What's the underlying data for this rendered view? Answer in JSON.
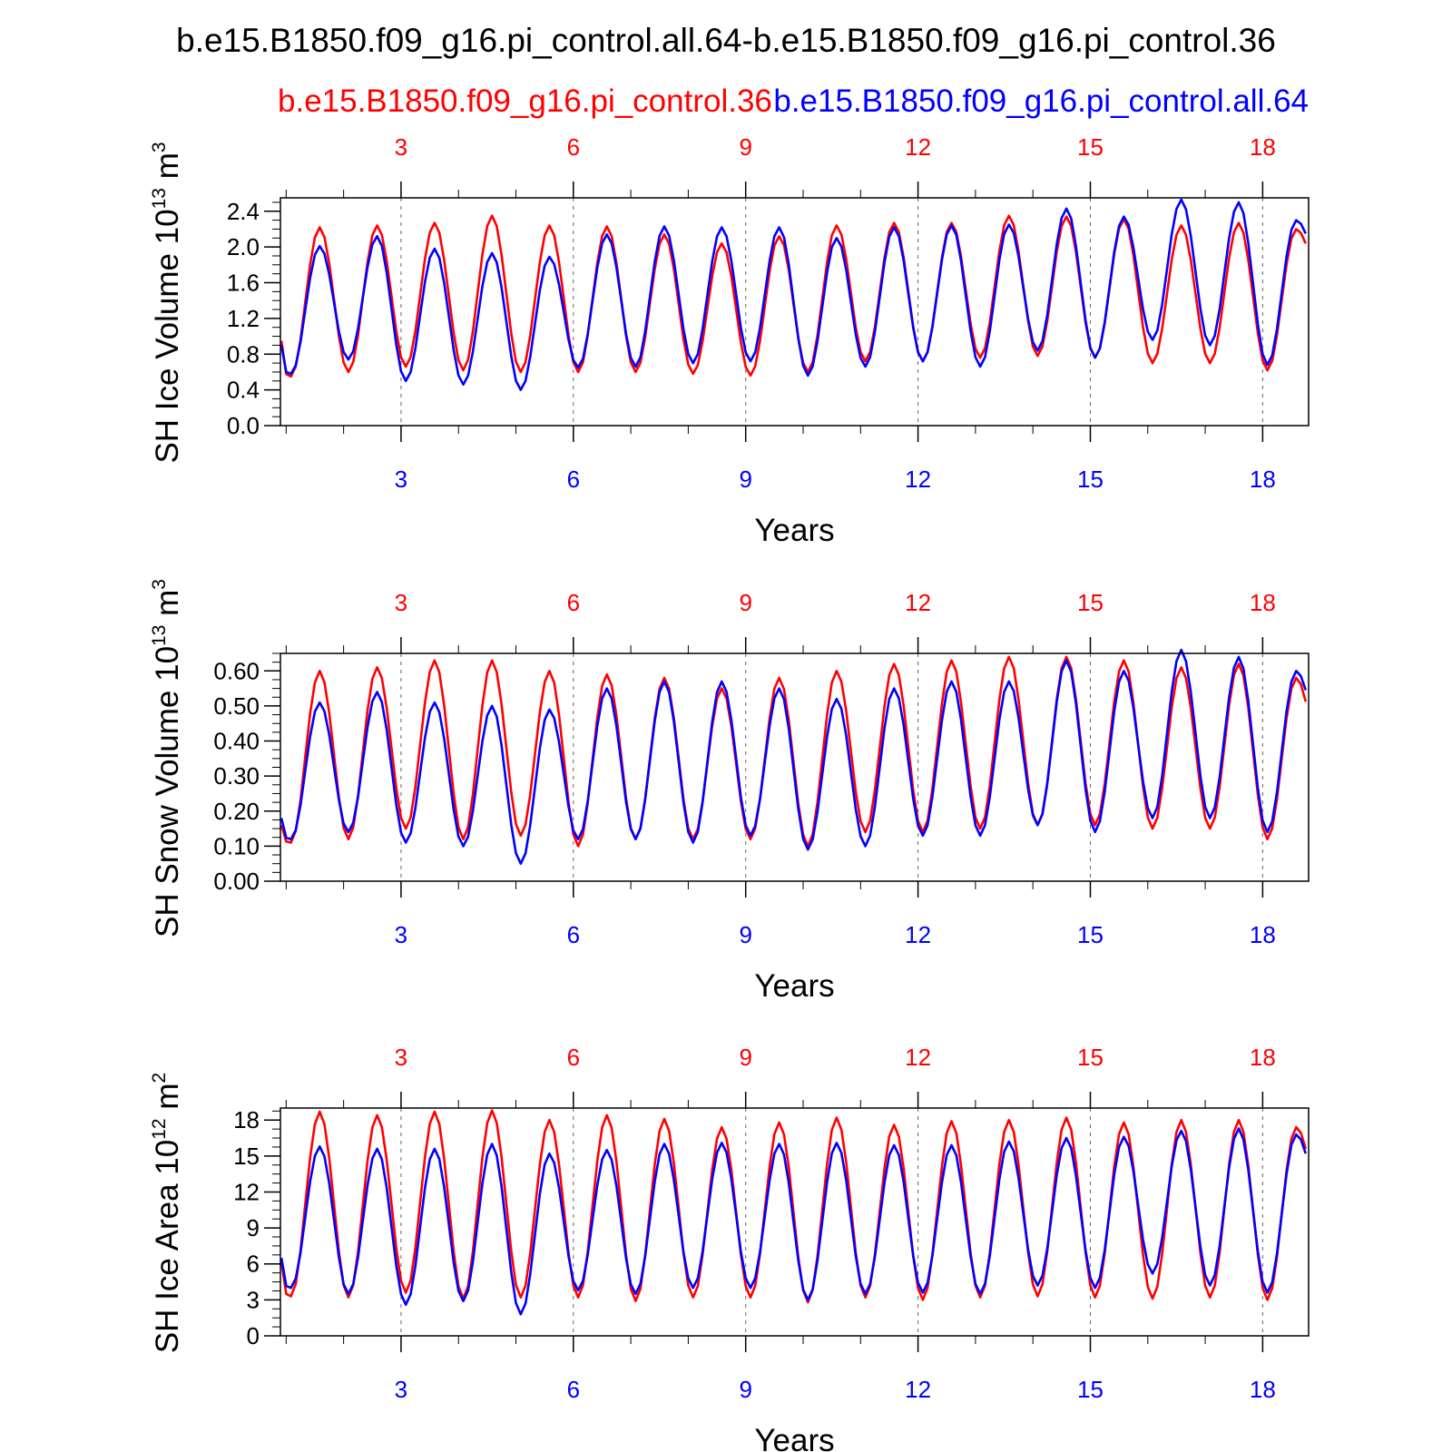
{
  "figure": {
    "main_title": "b.e15.B1850.f09_g16.pi_control.all.64-b.e15.B1850.f09_g16.pi_control.36",
    "red_run_label": "b.e15.B1850.f09_g16.pi_control.36",
    "blue_run_label": "b.e15.B1850.f09_g16.pi_control.all.64"
  },
  "colors": {
    "red": "#ff0000",
    "blue": "#0000ff",
    "axis": "#000000"
  },
  "chart_data": [
    {
      "type": "line",
      "ylabel": "SH Ice Volume 10",
      "ylabel_exp": "13",
      "ylabel_unit": " m",
      "ylabel_unit_exp": "3",
      "xlabel": "Years",
      "xlim": [
        0.9,
        18.8
      ],
      "ylim": [
        0.0,
        2.55
      ],
      "yticks": [
        0.0,
        0.4,
        0.8,
        1.2,
        1.6,
        2.0,
        2.4
      ],
      "yticklabels": [
        "0.0",
        "0.4",
        "0.8",
        "1.2",
        "1.6",
        "2.0",
        "2.4"
      ],
      "yminor": 0.1,
      "xticks": [
        3,
        6,
        9,
        12,
        15,
        18
      ],
      "xticklabels": [
        "3",
        "6",
        "9",
        "12",
        "15",
        "18"
      ],
      "series": [
        {
          "name": "b.e15.B1850.f09_g16.pi_control.36",
          "color": "red",
          "x0": 0.917,
          "dx": 0.08333,
          "period": 12,
          "peak_idx": 8,
          "trough_idx": 2,
          "start": 0.95,
          "end": 1.55,
          "peaks": [
            2.22,
            2.24,
            2.27,
            2.35,
            2.24,
            2.23,
            2.14,
            2.04,
            2.12,
            2.24,
            2.27,
            2.27,
            2.35,
            2.34,
            2.31,
            2.24,
            2.27,
            2.2
          ],
          "troughs": [
            0.55,
            0.6,
            0.66,
            0.62,
            0.6,
            0.6,
            0.6,
            0.58,
            0.56,
            0.6,
            0.72,
            0.72,
            0.76,
            0.78,
            0.76,
            0.7,
            0.7,
            0.62
          ]
        },
        {
          "name": "b.e15.B1850.f09_g16.pi_control.all.64",
          "color": "blue",
          "x0": 0.917,
          "dx": 0.08333,
          "period": 12,
          "peak_idx": 8,
          "trough_idx": 2,
          "start": 0.9,
          "end": 1.7,
          "peaks": [
            2.01,
            2.12,
            1.98,
            1.93,
            1.89,
            2.14,
            2.23,
            2.22,
            2.22,
            2.1,
            2.22,
            2.24,
            2.25,
            2.43,
            2.34,
            2.53,
            2.5,
            2.3
          ],
          "troughs": [
            0.58,
            0.74,
            0.5,
            0.46,
            0.4,
            0.65,
            0.66,
            0.7,
            0.72,
            0.56,
            0.66,
            0.72,
            0.66,
            0.84,
            0.76,
            0.96,
            0.9,
            0.68
          ]
        }
      ]
    },
    {
      "type": "line",
      "ylabel": "SH Snow Volume 10",
      "ylabel_exp": "13",
      "ylabel_unit": " m",
      "ylabel_unit_exp": "3",
      "xlabel": "Years",
      "xlim": [
        0.9,
        18.8
      ],
      "ylim": [
        0.0,
        0.65
      ],
      "yticks": [
        0.0,
        0.1,
        0.2,
        0.3,
        0.4,
        0.5,
        0.6
      ],
      "yticklabels": [
        "0.00",
        "0.10",
        "0.20",
        "0.30",
        "0.40",
        "0.50",
        "0.60"
      ],
      "yminor": 0.025,
      "xticks": [
        3,
        6,
        9,
        12,
        15,
        18
      ],
      "xticklabels": [
        "3",
        "6",
        "9",
        "12",
        "15",
        "18"
      ],
      "series": [
        {
          "name": "b.e15.B1850.f09_g16.pi_control.36",
          "color": "red",
          "x0": 0.917,
          "dx": 0.08333,
          "period": 12,
          "peak_idx": 8,
          "trough_idx": 2,
          "start": 0.16,
          "end": 0.31,
          "peaks": [
            0.6,
            0.61,
            0.63,
            0.63,
            0.6,
            0.59,
            0.58,
            0.55,
            0.58,
            0.6,
            0.62,
            0.63,
            0.64,
            0.64,
            0.63,
            0.61,
            0.62,
            0.58
          ],
          "troughs": [
            0.11,
            0.12,
            0.15,
            0.12,
            0.13,
            0.1,
            0.12,
            0.12,
            0.12,
            0.1,
            0.14,
            0.14,
            0.15,
            0.16,
            0.16,
            0.15,
            0.15,
            0.12
          ]
        },
        {
          "name": "b.e15.B1850.f09_g16.pi_control.all.64",
          "color": "blue",
          "x0": 0.917,
          "dx": 0.08333,
          "period": 12,
          "peak_idx": 8,
          "trough_idx": 2,
          "start": 0.18,
          "end": 0.38,
          "peaks": [
            0.51,
            0.54,
            0.51,
            0.5,
            0.49,
            0.55,
            0.57,
            0.57,
            0.55,
            0.52,
            0.55,
            0.57,
            0.57,
            0.63,
            0.6,
            0.66,
            0.64,
            0.6
          ],
          "troughs": [
            0.12,
            0.14,
            0.11,
            0.1,
            0.05,
            0.12,
            0.12,
            0.11,
            0.13,
            0.09,
            0.1,
            0.13,
            0.13,
            0.16,
            0.14,
            0.18,
            0.18,
            0.14
          ]
        }
      ]
    },
    {
      "type": "line",
      "ylabel": "SH Ice Area 10",
      "ylabel_exp": "12",
      "ylabel_unit": " m",
      "ylabel_unit_exp": "2",
      "xlabel": "Years",
      "xlim": [
        0.9,
        18.8
      ],
      "ylim": [
        0,
        19.0
      ],
      "yticks": [
        0,
        3,
        6,
        9,
        12,
        15,
        18
      ],
      "yticklabels": [
        "0",
        "3",
        "6",
        "9",
        "12",
        "15",
        "18"
      ],
      "yminor": 0.75,
      "xticks": [
        3,
        6,
        9,
        12,
        15,
        18
      ],
      "xticklabels": [
        "3",
        "6",
        "9",
        "12",
        "15",
        "18"
      ],
      "series": [
        {
          "name": "b.e15.B1850.f09_g16.pi_control.36",
          "color": "red",
          "x0": 0.917,
          "dx": 0.08333,
          "period": 12,
          "peak_idx": 8,
          "trough_idx": 2,
          "start": 6.2,
          "end": 10.2,
          "peaks": [
            18.7,
            18.4,
            18.7,
            18.8,
            18.0,
            18.4,
            18.1,
            17.4,
            17.8,
            18.2,
            17.6,
            17.9,
            18.0,
            18.2,
            17.8,
            18.0,
            18.0,
            17.4
          ],
          "troughs": [
            3.3,
            3.2,
            3.6,
            3.1,
            3.2,
            3.2,
            2.9,
            3.2,
            3.2,
            2.8,
            3.2,
            3.0,
            3.2,
            3.3,
            3.2,
            3.1,
            3.2,
            3.0
          ]
        },
        {
          "name": "b.e15.B1850.f09_g16.pi_control.all.64",
          "color": "blue",
          "x0": 0.917,
          "dx": 0.08333,
          "period": 12,
          "peak_idx": 8,
          "trough_idx": 2,
          "start": 6.5,
          "end": 10.4,
          "peaks": [
            15.8,
            15.6,
            15.6,
            16.0,
            15.2,
            15.5,
            16.0,
            16.1,
            16.0,
            16.1,
            15.9,
            15.9,
            16.2,
            16.5,
            16.6,
            17.1,
            17.3,
            16.8
          ],
          "troughs": [
            4.0,
            3.5,
            2.6,
            2.9,
            1.8,
            3.8,
            3.5,
            4.0,
            4.0,
            3.0,
            3.5,
            3.6,
            3.5,
            4.2,
            4.0,
            5.2,
            4.2,
            3.6
          ]
        }
      ]
    }
  ]
}
